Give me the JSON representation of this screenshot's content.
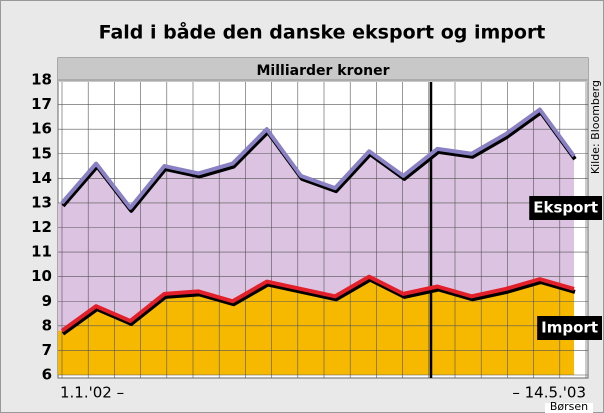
{
  "chart_data": {
    "type": "area",
    "title": "Fald i både den danske eksport og import",
    "subtitle": "Milliarder kroner",
    "source": "Kilde: Bloomberg",
    "credit": "Børsen",
    "categories": [
      "1.1.'02 –",
      null,
      null,
      null,
      null,
      null,
      null,
      null,
      null,
      null,
      null,
      null,
      null,
      null,
      null,
      "– 14.5.'03"
    ],
    "series": [
      {
        "name": "Eksport",
        "color": "#8a80c4",
        "fill": "#dcc3e2",
        "values": [
          13.0,
          14.6,
          12.8,
          14.5,
          14.2,
          14.6,
          16.0,
          14.1,
          13.6,
          15.1,
          14.1,
          15.2,
          15.0,
          15.8,
          16.8,
          14.9
        ]
      },
      {
        "name": "Import",
        "color": "#e3202a",
        "fill": "#f6b900",
        "values": [
          7.8,
          8.8,
          8.2,
          9.3,
          9.4,
          9.0,
          9.8,
          9.5,
          9.2,
          10.0,
          9.3,
          9.6,
          9.2,
          9.5,
          9.9,
          9.5
        ]
      }
    ],
    "ylim": [
      6,
      18
    ],
    "yticks": [
      6,
      7,
      8,
      9,
      10,
      11,
      12,
      13,
      14,
      15,
      16,
      17,
      18
    ],
    "grid": true
  }
}
